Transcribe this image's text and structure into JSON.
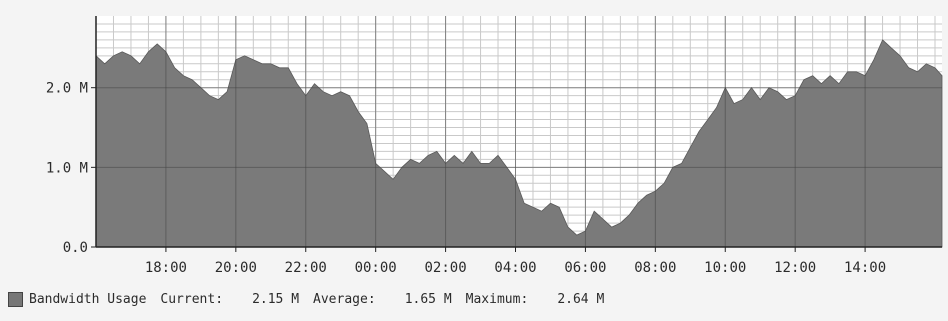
{
  "colors": {
    "background": "#f4f4f4",
    "plot_background": "#ffffff",
    "area_fill": "#7a7a7a",
    "grid": "#c9c9c9",
    "axis": "#222222",
    "text": "#2b2b2b"
  },
  "legend": {
    "series_label": "Bandwidth Usage",
    "current_label": "Current:",
    "current_value": "2.15 M",
    "average_label": "Average:",
    "average_value": "1.65 M",
    "maximum_label": "Maximum:",
    "maximum_value": "2.64 M"
  },
  "chart_data": {
    "type": "area",
    "title": "",
    "xlabel": "",
    "ylabel": "",
    "grid": true,
    "legend_position": "bottom-left",
    "ylim": [
      0,
      2.9
    ],
    "y_ticks": [
      {
        "value": 0.0,
        "label": "0.0"
      },
      {
        "value": 1.0,
        "label": "1.0 M"
      },
      {
        "value": 2.0,
        "label": "2.0 M"
      }
    ],
    "x_range_hours": [
      16.0,
      40.2
    ],
    "x_ticks": [
      {
        "value": 18,
        "label": "18:00"
      },
      {
        "value": 20,
        "label": "20:00"
      },
      {
        "value": 22,
        "label": "22:00"
      },
      {
        "value": 24,
        "label": "00:00"
      },
      {
        "value": 26,
        "label": "02:00"
      },
      {
        "value": 28,
        "label": "04:00"
      },
      {
        "value": 30,
        "label": "06:00"
      },
      {
        "value": 32,
        "label": "08:00"
      },
      {
        "value": 34,
        "label": "10:00"
      },
      {
        "value": 36,
        "label": "12:00"
      },
      {
        "value": 38,
        "label": "14:00"
      }
    ],
    "series": [
      {
        "name": "Bandwidth Usage",
        "points": [
          [
            16.0,
            2.4
          ],
          [
            16.25,
            2.3
          ],
          [
            16.5,
            2.4
          ],
          [
            16.75,
            2.45
          ],
          [
            17.0,
            2.4
          ],
          [
            17.25,
            2.3
          ],
          [
            17.5,
            2.45
          ],
          [
            17.75,
            2.55
          ],
          [
            18.0,
            2.45
          ],
          [
            18.25,
            2.25
          ],
          [
            18.5,
            2.15
          ],
          [
            18.75,
            2.1
          ],
          [
            19.0,
            2.0
          ],
          [
            19.25,
            1.9
          ],
          [
            19.5,
            1.85
          ],
          [
            19.75,
            1.95
          ],
          [
            20.0,
            2.35
          ],
          [
            20.25,
            2.4
          ],
          [
            20.5,
            2.35
          ],
          [
            20.75,
            2.3
          ],
          [
            21.0,
            2.3
          ],
          [
            21.25,
            2.25
          ],
          [
            21.5,
            2.25
          ],
          [
            21.75,
            2.05
          ],
          [
            22.0,
            1.9
          ],
          [
            22.25,
            2.05
          ],
          [
            22.5,
            1.95
          ],
          [
            22.75,
            1.9
          ],
          [
            23.0,
            1.95
          ],
          [
            23.25,
            1.9
          ],
          [
            23.5,
            1.7
          ],
          [
            23.75,
            1.55
          ],
          [
            24.0,
            1.05
          ],
          [
            24.25,
            0.95
          ],
          [
            24.5,
            0.85
          ],
          [
            24.75,
            1.0
          ],
          [
            25.0,
            1.1
          ],
          [
            25.25,
            1.05
          ],
          [
            25.5,
            1.15
          ],
          [
            25.75,
            1.2
          ],
          [
            26.0,
            1.05
          ],
          [
            26.25,
            1.15
          ],
          [
            26.5,
            1.05
          ],
          [
            26.75,
            1.2
          ],
          [
            27.0,
            1.05
          ],
          [
            27.25,
            1.05
          ],
          [
            27.5,
            1.15
          ],
          [
            27.75,
            1.0
          ],
          [
            28.0,
            0.85
          ],
          [
            28.25,
            0.55
          ],
          [
            28.5,
            0.5
          ],
          [
            28.75,
            0.45
          ],
          [
            29.0,
            0.55
          ],
          [
            29.25,
            0.5
          ],
          [
            29.5,
            0.25
          ],
          [
            29.75,
            0.15
          ],
          [
            30.0,
            0.2
          ],
          [
            30.25,
            0.45
          ],
          [
            30.5,
            0.35
          ],
          [
            30.75,
            0.25
          ],
          [
            31.0,
            0.3
          ],
          [
            31.25,
            0.4
          ],
          [
            31.5,
            0.55
          ],
          [
            31.75,
            0.65
          ],
          [
            32.0,
            0.7
          ],
          [
            32.25,
            0.8
          ],
          [
            32.5,
            1.0
          ],
          [
            32.75,
            1.05
          ],
          [
            33.0,
            1.25
          ],
          [
            33.25,
            1.45
          ],
          [
            33.5,
            1.6
          ],
          [
            33.75,
            1.75
          ],
          [
            34.0,
            2.0
          ],
          [
            34.25,
            1.8
          ],
          [
            34.5,
            1.85
          ],
          [
            34.75,
            2.0
          ],
          [
            35.0,
            1.85
          ],
          [
            35.25,
            2.0
          ],
          [
            35.5,
            1.95
          ],
          [
            35.75,
            1.85
          ],
          [
            36.0,
            1.9
          ],
          [
            36.25,
            2.1
          ],
          [
            36.5,
            2.15
          ],
          [
            36.75,
            2.05
          ],
          [
            37.0,
            2.15
          ],
          [
            37.25,
            2.05
          ],
          [
            37.5,
            2.2
          ],
          [
            37.75,
            2.2
          ],
          [
            38.0,
            2.15
          ],
          [
            38.25,
            2.35
          ],
          [
            38.5,
            2.6
          ],
          [
            38.75,
            2.5
          ],
          [
            39.0,
            2.4
          ],
          [
            39.25,
            2.25
          ],
          [
            39.5,
            2.2
          ],
          [
            39.75,
            2.3
          ],
          [
            40.0,
            2.25
          ],
          [
            40.2,
            2.15
          ]
        ]
      }
    ]
  }
}
